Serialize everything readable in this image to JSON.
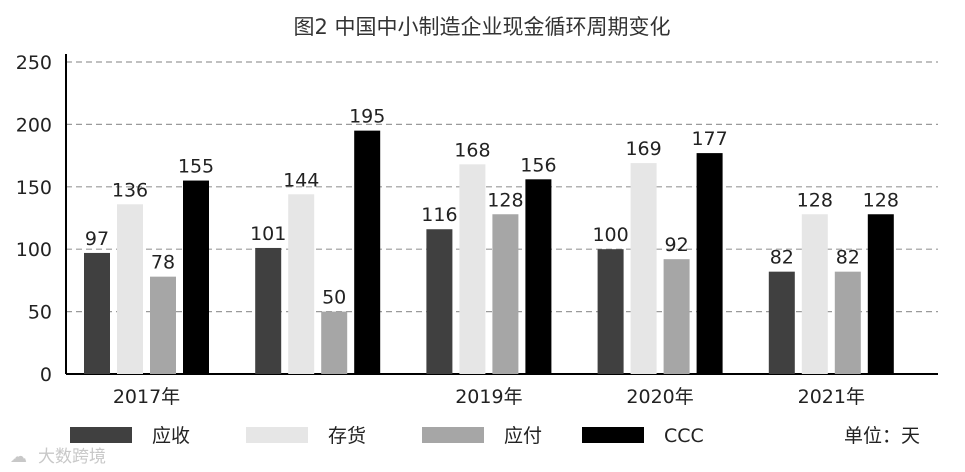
{
  "chart_data": {
    "type": "bar",
    "title": "图2 中国中小制造企业现金循环周期变化",
    "categories": [
      "2017年",
      "",
      "2019年",
      "2020年",
      "2021年"
    ],
    "series": [
      {
        "name": "应收",
        "values": [
          97,
          101,
          116,
          100,
          82
        ],
        "color": "#404040"
      },
      {
        "name": "存货",
        "values": [
          136,
          144,
          168,
          169,
          128
        ],
        "color": "#e6e6e6"
      },
      {
        "name": "应付",
        "values": [
          78,
          50,
          128,
          92,
          82
        ],
        "color": "#a6a6a6"
      },
      {
        "name": "CCC",
        "values": [
          155,
          195,
          156,
          177,
          128
        ],
        "color": "#000000"
      }
    ],
    "ylim": [
      0,
      250
    ],
    "yticks": [
      0,
      50,
      100,
      150,
      200,
      250
    ],
    "grid": true,
    "legend_position": "bottom"
  },
  "unit_label": "单位：天",
  "watermark": "大数跨境"
}
